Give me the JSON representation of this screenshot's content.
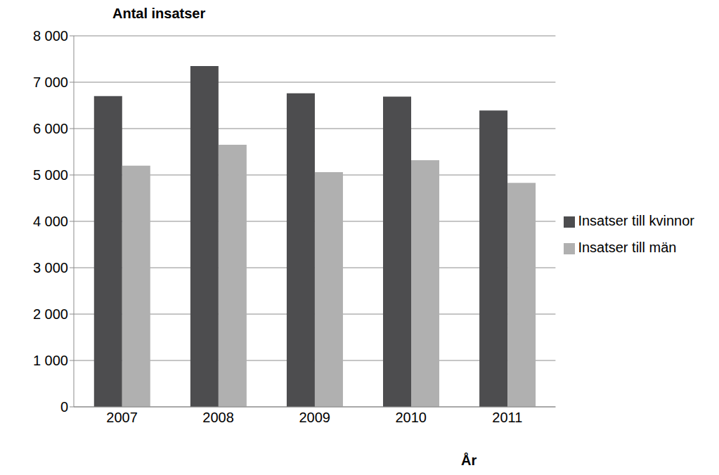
{
  "chart_data": {
    "type": "bar",
    "title": "Antal insatser",
    "xlabel": "År",
    "categories": [
      "2007",
      "2008",
      "2009",
      "2010",
      "2011"
    ],
    "series": [
      {
        "name": "Insatser till kvinnor",
        "color": "#4d4d4f",
        "values": [
          6700,
          7350,
          6760,
          6690,
          6390
        ]
      },
      {
        "name": "Insatser till män",
        "color": "#b0b0b0",
        "values": [
          5200,
          5650,
          5060,
          5320,
          4830
        ]
      }
    ],
    "ylim": [
      0,
      8000
    ],
    "yticks": [
      0,
      {
        "value": 1000,
        "label": "1 000"
      },
      {
        "value": 2000,
        "label": "2 000"
      },
      {
        "value": 3000,
        "label": "3 000"
      },
      {
        "value": 4000,
        "label": "4 000"
      },
      {
        "value": 5000,
        "label": "5 000"
      },
      {
        "value": 6000,
        "label": "6 000"
      },
      {
        "value": 7000,
        "label": "7 000"
      },
      {
        "value": 8000,
        "label": "8 000"
      }
    ],
    "grid": true,
    "legend": "right"
  }
}
